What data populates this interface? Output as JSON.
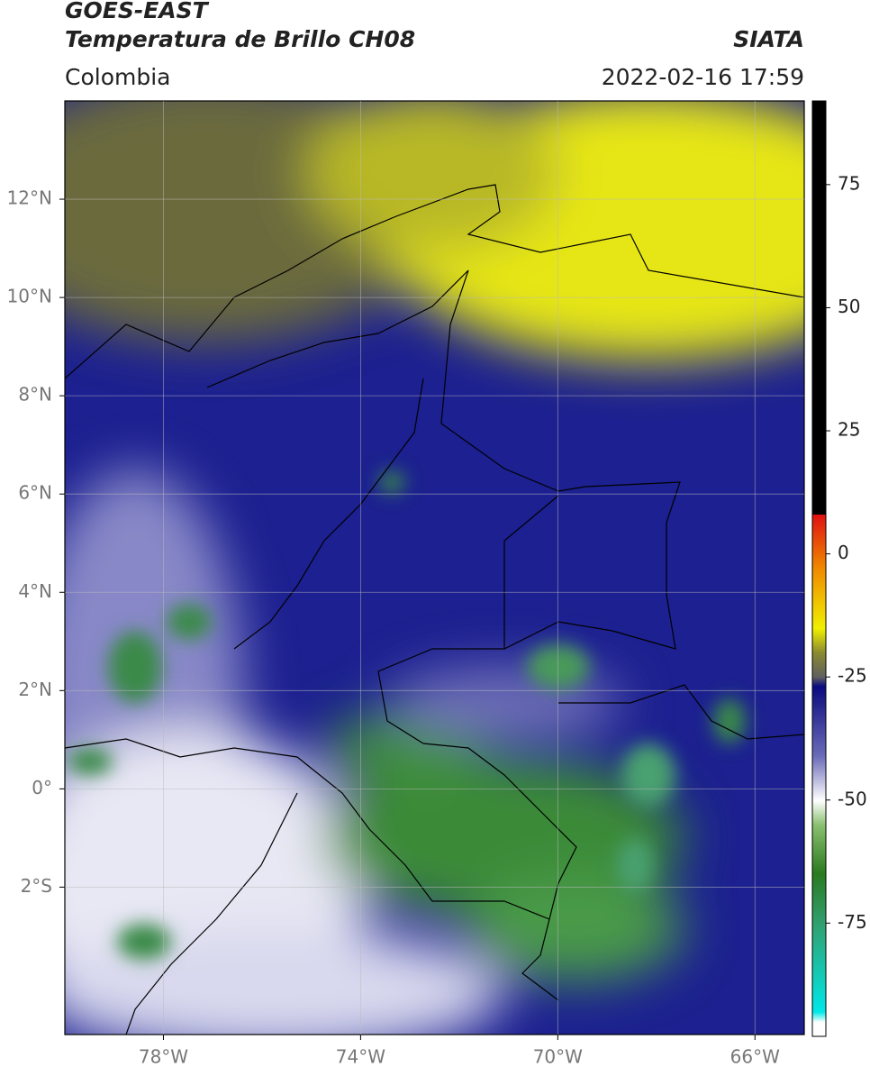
{
  "header": {
    "title": "GOES-EAST",
    "subtitle": "Temperatura de Brillo CH08",
    "region": "Colombia",
    "source": "SIATA",
    "datetime": "2022-02-16 17:59"
  },
  "map": {
    "xlim": [
      -80,
      -65
    ],
    "ylim": [
      -5,
      14
    ],
    "xticks": [
      {
        "value": -78,
        "label": "78°W"
      },
      {
        "value": -74,
        "label": "74°W"
      },
      {
        "value": -70,
        "label": "70°W"
      },
      {
        "value": -66,
        "label": "66°W"
      }
    ],
    "yticks": [
      {
        "value": -2,
        "label": "2°S"
      },
      {
        "value": 0,
        "label": "0°"
      },
      {
        "value": 2,
        "label": "2°N"
      },
      {
        "value": 4,
        "label": "4°N"
      },
      {
        "value": 6,
        "label": "6°N"
      },
      {
        "value": 8,
        "label": "8°N"
      },
      {
        "value": 10,
        "label": "10°N"
      },
      {
        "value": 12,
        "label": "12°N"
      }
    ],
    "grid": true
  },
  "colorbar": {
    "lim": [
      -98,
      92
    ],
    "ticks": [
      -75,
      -50,
      -25,
      0,
      25,
      50,
      75
    ]
  }
}
